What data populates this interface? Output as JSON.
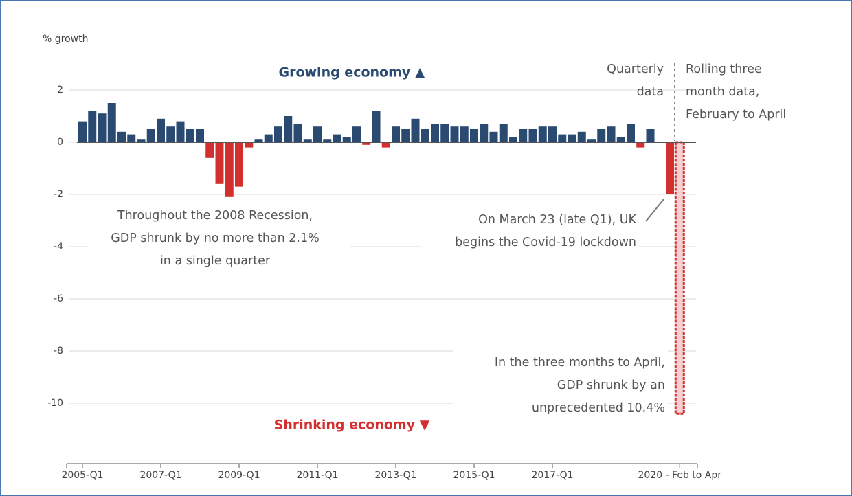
{
  "chart_data": {
    "type": "bar",
    "y_label": "% growth",
    "categories": [
      "2005-Q1",
      null,
      null,
      null,
      null,
      null,
      null,
      null,
      "2007-Q1",
      null,
      null,
      null,
      null,
      null,
      null,
      null,
      "2009-Q1",
      null,
      null,
      null,
      null,
      null,
      null,
      null,
      "2011-Q1",
      null,
      null,
      null,
      null,
      null,
      null,
      null,
      "2013-Q1",
      null,
      null,
      null,
      null,
      null,
      null,
      null,
      "2015-Q1",
      null,
      null,
      null,
      null,
      null,
      null,
      null,
      "2017-Q1",
      null,
      null,
      null,
      null,
      null,
      null,
      null,
      null,
      null,
      null,
      null,
      null,
      "2020 - Feb to Apr"
    ],
    "values": [
      0.8,
      1.2,
      1.1,
      1.5,
      0.4,
      0.3,
      0.1,
      0.5,
      0.9,
      0.6,
      0.8,
      0.5,
      0.5,
      -0.6,
      -1.6,
      -2.1,
      -1.7,
      -0.2,
      0.1,
      0.3,
      0.6,
      1.0,
      0.7,
      0.1,
      0.6,
      0.1,
      0.3,
      0.2,
      0.6,
      -0.1,
      1.2,
      -0.2,
      0.6,
      0.5,
      0.9,
      0.5,
      0.7,
      0.7,
      0.6,
      0.6,
      0.5,
      0.7,
      0.4,
      0.7,
      0.2,
      0.5,
      0.5,
      0.6,
      0.6,
      0.3,
      0.3,
      0.4,
      0.1,
      0.5,
      0.6,
      0.2,
      0.7,
      -0.2,
      0.5,
      0.0,
      -2.0,
      -10.4
    ],
    "positive_color": "#2a4a72",
    "negative_color": "#d32f2f",
    "ylim": [
      -12.3,
      3
    ],
    "yticks": [
      2,
      0,
      -2,
      -4,
      -6,
      -8,
      -10
    ],
    "grid": true,
    "annotations": {
      "growing": "Growing economy ▲",
      "shrinking": "Shrinking economy ▼",
      "quarterly": [
        "Quarterly",
        "data"
      ],
      "rolling": [
        "Rolling three",
        "month data,",
        "February to April"
      ],
      "recession": [
        "Throughout the 2008 Recession,",
        "GDP shrunk by no more than 2.1%",
        "in a single quarter"
      ],
      "lockdown": [
        "On March 23 (late Q1), UK",
        "begins the Covid-19 lockdown"
      ],
      "april": [
        "In the three months to April,",
        "GDP shrunk by an",
        "unprecedented 10.4%"
      ]
    }
  }
}
